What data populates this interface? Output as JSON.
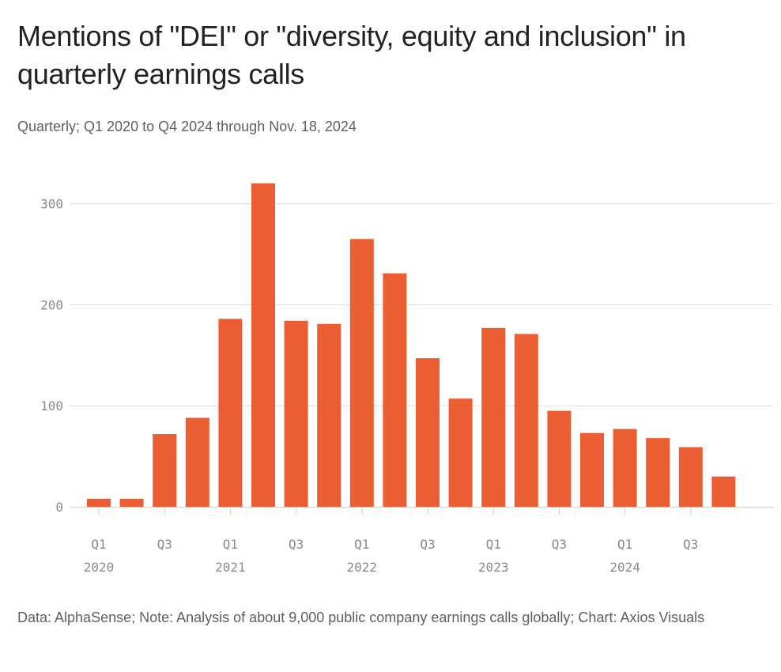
{
  "title": "Mentions of \"DEI\" or \"diversity, equity and inclusion\" in quarterly earnings calls",
  "subtitle": "Quarterly; Q1 2020 to Q4 2024 through Nov. 18, 2024",
  "footer": "Data: AlphaSense; Note: Analysis of about 9,000 public company earnings calls globally; Chart: Axios Visuals",
  "colors": {
    "bar": "#eb5e33",
    "grid": "#dcdcdc",
    "axis": "#cfcfcf"
  },
  "chart_data": {
    "type": "bar",
    "categories": [
      "Q1 2020",
      "Q2 2020",
      "Q3 2020",
      "Q4 2020",
      "Q1 2021",
      "Q2 2021",
      "Q3 2021",
      "Q4 2021",
      "Q1 2022",
      "Q2 2022",
      "Q3 2022",
      "Q4 2022",
      "Q1 2023",
      "Q2 2023",
      "Q3 2023",
      "Q4 2023",
      "Q1 2024",
      "Q2 2024",
      "Q3 2024",
      "Q4 2024"
    ],
    "values": [
      8,
      8,
      72,
      88,
      186,
      320,
      184,
      181,
      265,
      231,
      147,
      107,
      177,
      171,
      95,
      73,
      77,
      68,
      59,
      30
    ],
    "ylim": [
      0,
      320
    ],
    "yticks": [
      0,
      100,
      200,
      300
    ],
    "xticks": [
      {
        "category": "Q1 2020",
        "quarter": "Q1",
        "year": "2020"
      },
      {
        "category": "Q3 2020",
        "quarter": "Q3",
        "year": ""
      },
      {
        "category": "Q1 2021",
        "quarter": "Q1",
        "year": "2021"
      },
      {
        "category": "Q3 2021",
        "quarter": "Q3",
        "year": ""
      },
      {
        "category": "Q1 2022",
        "quarter": "Q1",
        "year": "2022"
      },
      {
        "category": "Q3 2022",
        "quarter": "Q3",
        "year": ""
      },
      {
        "category": "Q1 2023",
        "quarter": "Q1",
        "year": "2023"
      },
      {
        "category": "Q3 2023",
        "quarter": "Q3",
        "year": ""
      },
      {
        "category": "Q1 2024",
        "quarter": "Q1",
        "year": "2024"
      },
      {
        "category": "Q3 2024",
        "quarter": "Q3",
        "year": ""
      }
    ],
    "xlabel": "",
    "ylabel": "",
    "grid": true,
    "legend": false
  }
}
